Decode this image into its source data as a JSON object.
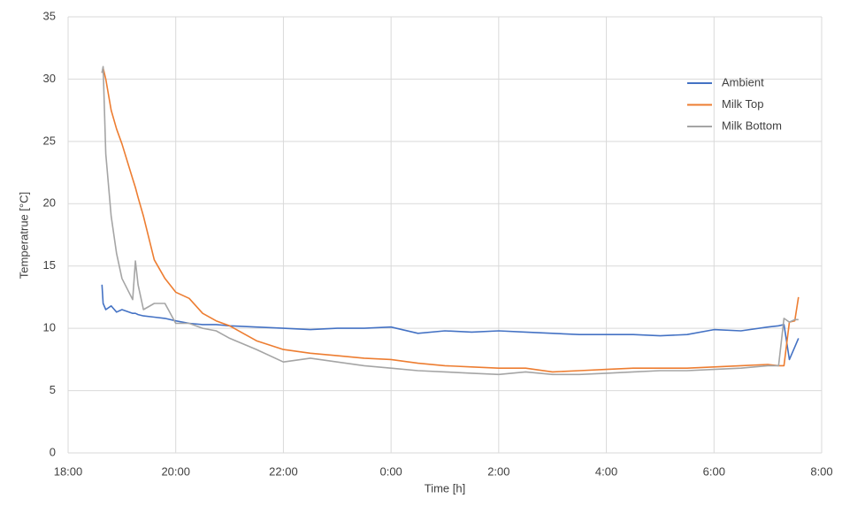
{
  "chart_data": {
    "type": "line",
    "x_label": "Time [h]",
    "y_label": "Temperatrue [°C]",
    "x": [
      18.63,
      18.65,
      18.7,
      18.8,
      18.9,
      19.0,
      19.2,
      19.25,
      19.3,
      19.4,
      19.6,
      19.8,
      20.0,
      20.25,
      20.5,
      20.75,
      21.0,
      21.5,
      22.0,
      22.5,
      23.0,
      23.5,
      24.0,
      24.5,
      25.0,
      25.5,
      26.0,
      26.5,
      27.0,
      27.5,
      28.0,
      28.5,
      29.0,
      29.5,
      30.0,
      30.5,
      31.0,
      31.2,
      31.3,
      31.4,
      31.5,
      31.57
    ],
    "series": [
      {
        "name": "Ambient",
        "color": "#4472c4",
        "values": [
          13.5,
          12,
          11.5,
          11.8,
          11.3,
          11.5,
          11.2,
          11.2,
          11.1,
          11.0,
          10.9,
          10.8,
          10.6,
          10.4,
          10.3,
          10.3,
          10.2,
          10.1,
          10.0,
          9.9,
          10.0,
          10.0,
          10.1,
          9.6,
          9.8,
          9.7,
          9.8,
          9.7,
          9.6,
          9.5,
          9.5,
          9.5,
          9.4,
          9.5,
          9.9,
          9.8,
          10.1,
          10.2,
          10.3,
          7.5,
          8.5,
          9.2
        ]
      },
      {
        "name": "Milk Top",
        "color": "#ed7d31",
        "values": [
          30.5,
          30.9,
          30,
          27.5,
          26,
          24.8,
          22,
          21.3,
          20.5,
          19,
          15.5,
          14,
          12.9,
          12.4,
          11.2,
          10.6,
          10.2,
          9.0,
          8.3,
          8.0,
          7.8,
          7.6,
          7.5,
          7.2,
          7.0,
          6.9,
          6.8,
          6.8,
          6.5,
          6.6,
          6.7,
          6.8,
          6.8,
          6.8,
          6.9,
          7.0,
          7.1,
          7.0,
          7.0,
          10.5,
          10.6,
          12.5
        ]
      },
      {
        "name": "Milk Bottom",
        "color": "#a5a5a5",
        "values": [
          30.5,
          31,
          24,
          19,
          16,
          14,
          12.3,
          15.4,
          13.5,
          11.5,
          12.0,
          12.0,
          10.4,
          10.4,
          10.0,
          9.8,
          9.2,
          8.3,
          7.3,
          7.6,
          7.3,
          7.0,
          6.8,
          6.6,
          6.5,
          6.4,
          6.3,
          6.5,
          6.3,
          6.3,
          6.4,
          6.5,
          6.6,
          6.6,
          6.7,
          6.8,
          7.0,
          7.0,
          10.8,
          10.5,
          10.7,
          10.7
        ]
      }
    ],
    "xlim": [
      18,
      32
    ],
    "xticks": [
      {
        "value": 18,
        "label": "18:00"
      },
      {
        "value": 20,
        "label": "20:00"
      },
      {
        "value": 22,
        "label": "22:00"
      },
      {
        "value": 24,
        "label": "0:00"
      },
      {
        "value": 26,
        "label": "2:00"
      },
      {
        "value": 28,
        "label": "4:00"
      },
      {
        "value": 30,
        "label": "6:00"
      },
      {
        "value": 32,
        "label": "8:00"
      }
    ],
    "ylim": [
      0,
      35
    ],
    "yticks": [
      0,
      5,
      10,
      15,
      20,
      25,
      30,
      35
    ],
    "grid": true,
    "legend": "upper-right"
  }
}
